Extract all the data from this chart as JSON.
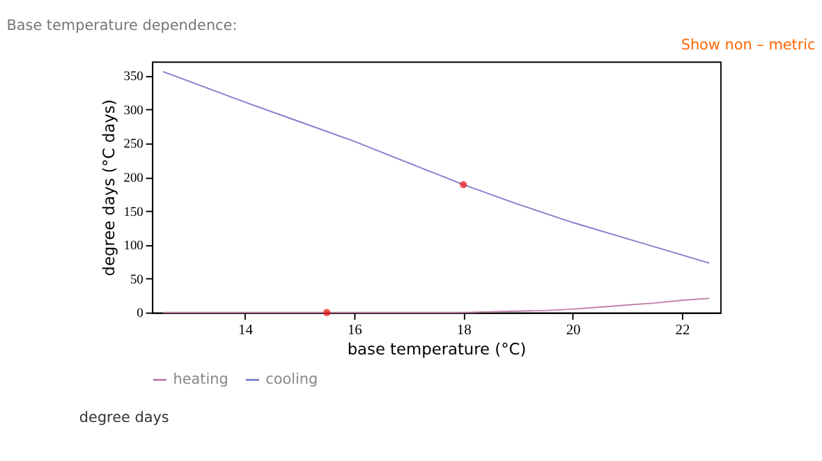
{
  "chart_data": {
    "type": "line",
    "title": "Base temperature dependence:",
    "xlabel": "base temperature (°C)",
    "ylabel": "degree days (°C days)",
    "xlim": [
      12.3,
      22.7
    ],
    "ylim": [
      0,
      371
    ],
    "xticks": [
      14,
      16,
      18,
      20,
      22
    ],
    "yticks": [
      0,
      50,
      100,
      150,
      200,
      250,
      300,
      350
    ],
    "grid": false,
    "legend": "bottom",
    "marker": "none",
    "line_style": "solid",
    "series": [
      {
        "name": "heating",
        "color": "#c080a8",
        "x": [
          12.5,
          14,
          16,
          17.5,
          18,
          18.5,
          19,
          19.5,
          20,
          20.5,
          21,
          21.5,
          22,
          22.5
        ],
        "values": [
          0,
          0,
          0,
          0,
          0,
          1,
          2,
          3,
          5,
          8,
          11,
          14,
          18,
          21
        ]
      },
      {
        "name": "cooling",
        "color": "#8080cc",
        "x": [
          12.5,
          13,
          14,
          15,
          16,
          17,
          18,
          19,
          20,
          21,
          22,
          22.5
        ],
        "values": [
          356,
          341,
          311,
          282,
          253,
          221,
          189,
          160,
          133,
          109,
          85,
          73
        ]
      },
      {
        "type": "scatter",
        "color": "#ee1111",
        "marker": "circle",
        "x": [
          15.5,
          18
        ],
        "values": [
          0,
          189
        ]
      }
    ],
    "annotations": [
      "Show non – metric",
      "degree days"
    ]
  }
}
